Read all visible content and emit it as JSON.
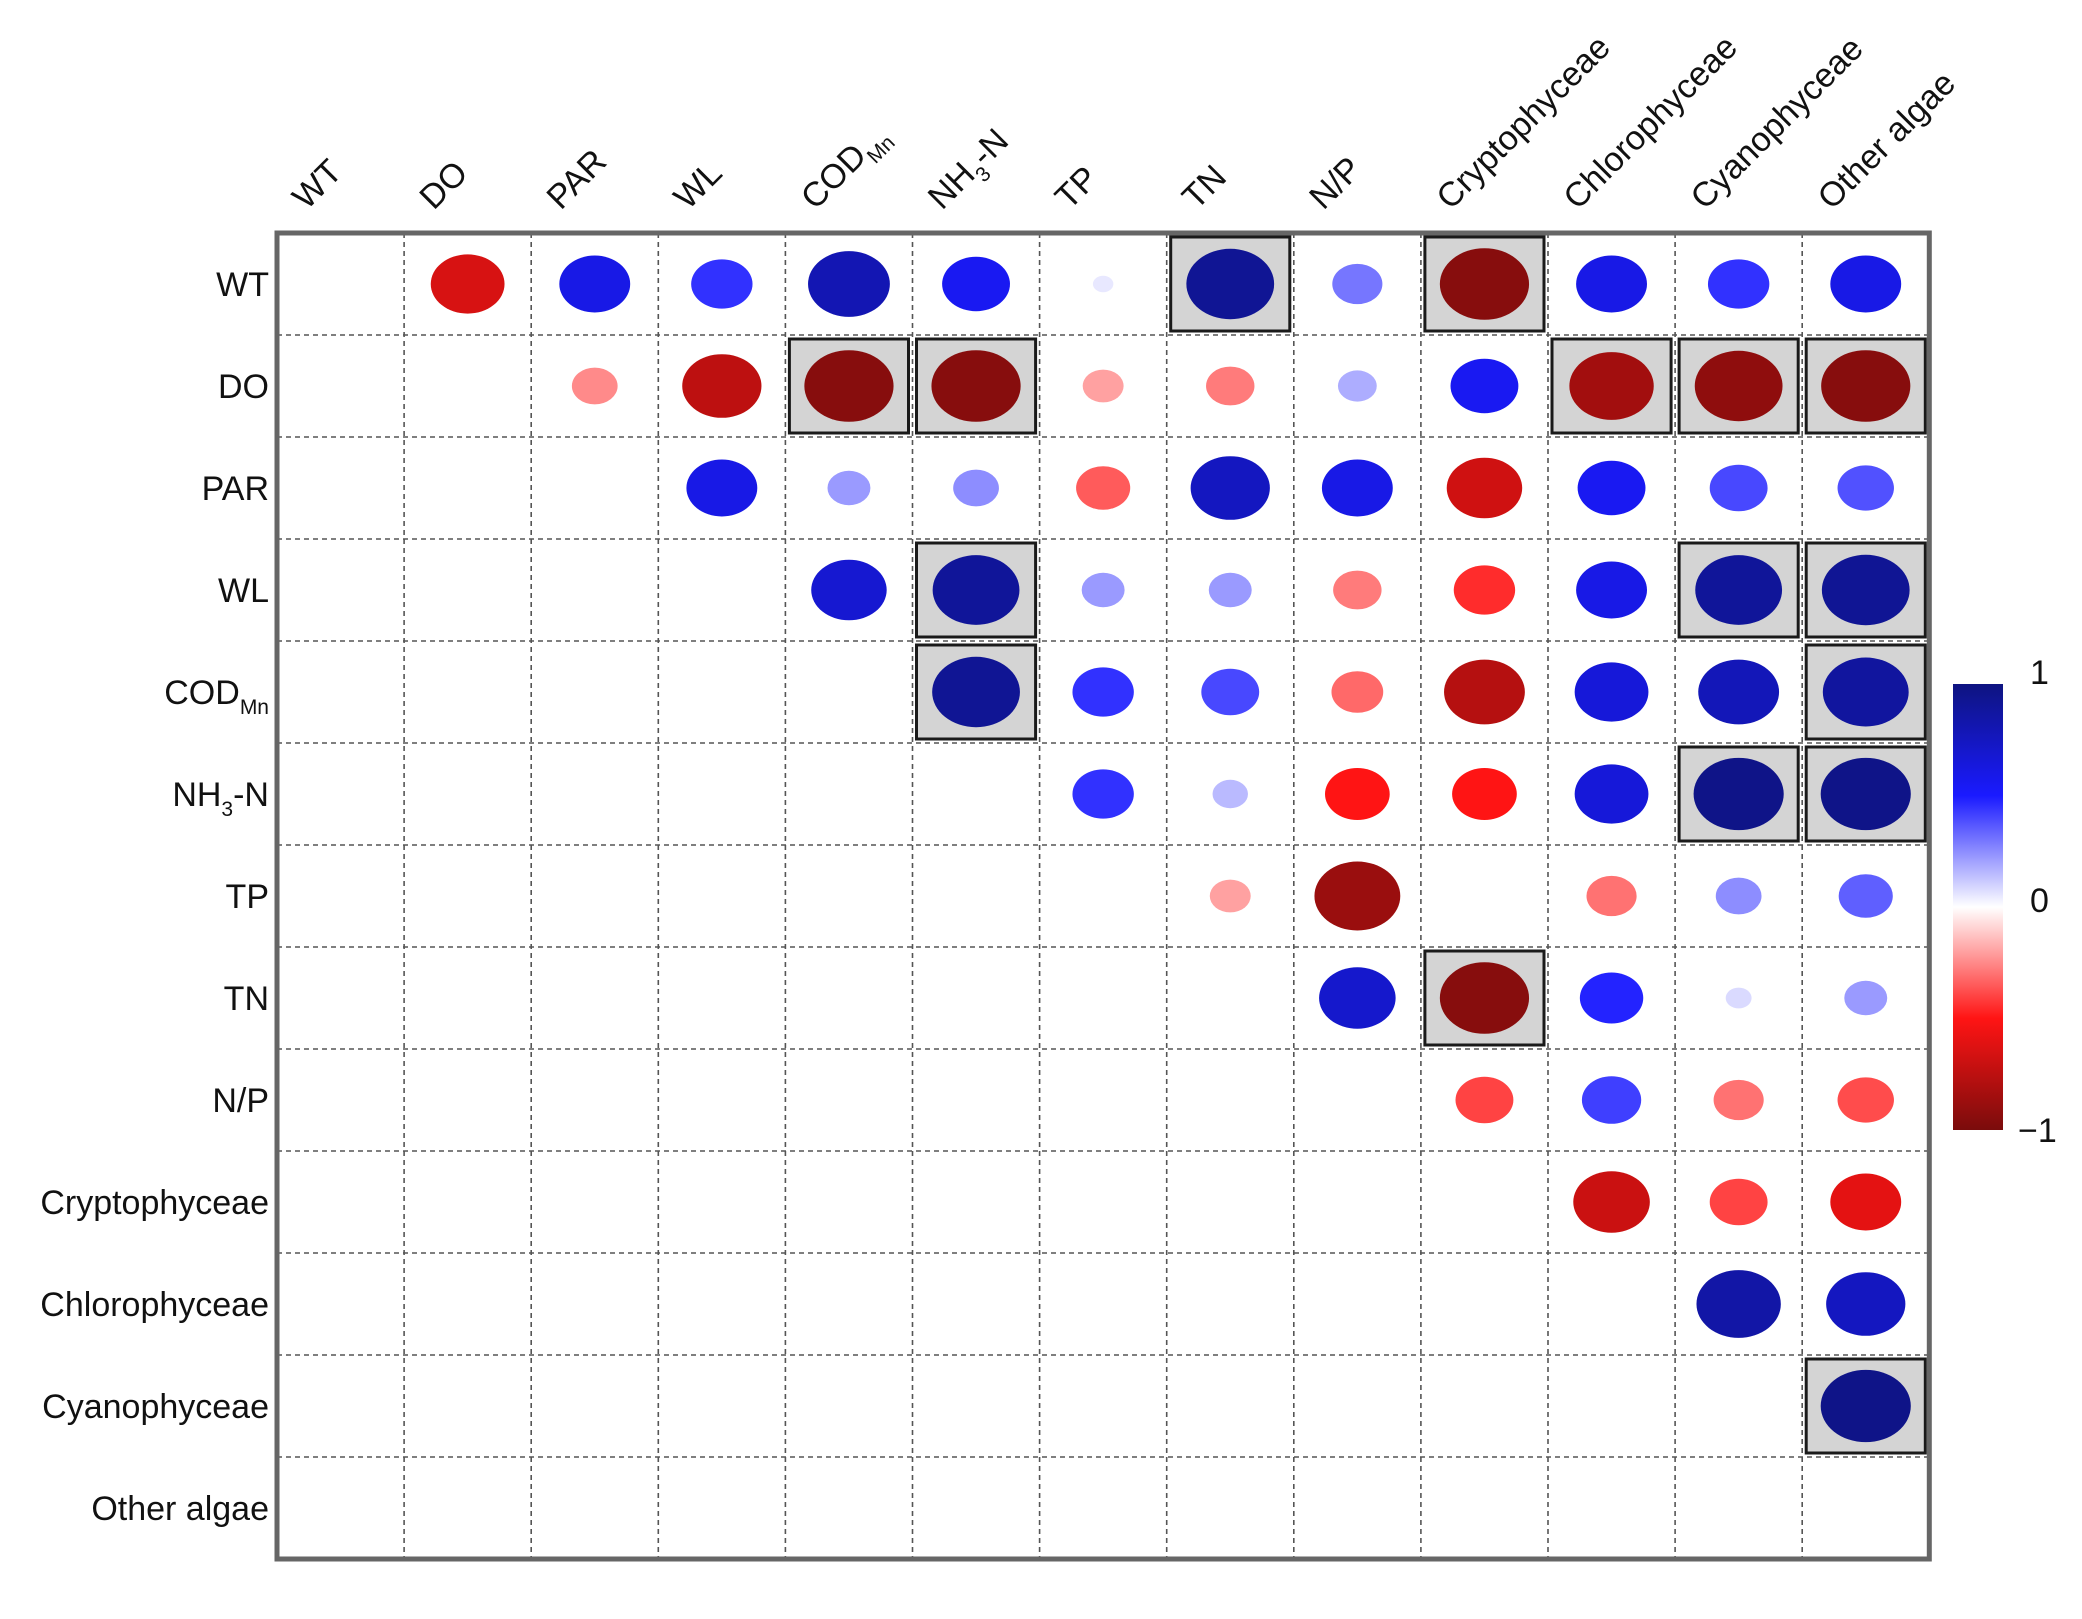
{
  "chart_data": {
    "type": "heatmap",
    "title": "",
    "variables": [
      {
        "label": "WT"
      },
      {
        "label": "DO"
      },
      {
        "label": "PAR"
      },
      {
        "label": "WL"
      },
      {
        "label": "COD",
        "sub": "Mn"
      },
      {
        "label": "NH",
        "sub": "3",
        "suffix": "-N"
      },
      {
        "label": "TP"
      },
      {
        "label": "TN"
      },
      {
        "label": "N/P"
      },
      {
        "label": "Cryptophyceae"
      },
      {
        "label": "Chlorophyceae"
      },
      {
        "label": "Cyanophyceae"
      },
      {
        "label": "Other algae"
      }
    ],
    "correlations": [
      [
        null,
        -0.65,
        0.6,
        0.45,
        0.8,
        0.55,
        0.05,
        0.92,
        0.3,
        -0.95,
        0.6,
        0.45,
        0.6
      ],
      [
        null,
        null,
        -0.25,
        -0.75,
        -0.95,
        -0.95,
        -0.2,
        -0.28,
        0.18,
        0.55,
        -0.85,
        -0.92,
        -0.95
      ],
      [
        null,
        null,
        null,
        0.6,
        0.22,
        0.25,
        -0.35,
        0.75,
        0.6,
        -0.68,
        0.55,
        0.4,
        0.38
      ],
      [
        null,
        null,
        null,
        null,
        0.68,
        0.9,
        0.22,
        0.22,
        -0.28,
        -0.45,
        0.6,
        0.9,
        0.92
      ],
      [
        null,
        null,
        null,
        null,
        null,
        0.92,
        0.45,
        0.4,
        -0.32,
        -0.78,
        0.65,
        0.78,
        0.88
      ],
      [
        null,
        null,
        null,
        null,
        null,
        null,
        0.45,
        0.15,
        -0.5,
        -0.5,
        0.65,
        0.97,
        0.97
      ],
      [
        null,
        null,
        null,
        null,
        null,
        null,
        null,
        -0.2,
        -0.88,
        null,
        -0.3,
        0.25,
        0.35
      ],
      [
        null,
        null,
        null,
        null,
        null,
        null,
        null,
        null,
        0.7,
        -0.95,
        0.48,
        0.08,
        0.22
      ],
      [
        null,
        null,
        null,
        null,
        null,
        null,
        null,
        null,
        null,
        -0.4,
        0.42,
        -0.3,
        -0.38
      ],
      [
        null,
        null,
        null,
        null,
        null,
        null,
        null,
        null,
        null,
        null,
        -0.7,
        -0.4,
        -0.6
      ],
      [
        null,
        null,
        null,
        null,
        null,
        null,
        null,
        null,
        null,
        null,
        null,
        0.85,
        0.75
      ],
      [
        null,
        null,
        null,
        null,
        null,
        null,
        null,
        null,
        null,
        null,
        null,
        null,
        0.97
      ],
      [
        null,
        null,
        null,
        null,
        null,
        null,
        null,
        null,
        null,
        null,
        null,
        null,
        null
      ]
    ],
    "highlighted": [
      [
        0,
        7
      ],
      [
        0,
        9
      ],
      [
        1,
        4
      ],
      [
        1,
        5
      ],
      [
        1,
        10
      ],
      [
        1,
        11
      ],
      [
        1,
        12
      ],
      [
        3,
        5
      ],
      [
        3,
        11
      ],
      [
        3,
        12
      ],
      [
        4,
        5
      ],
      [
        4,
        12
      ],
      [
        5,
        11
      ],
      [
        5,
        12
      ],
      [
        7,
        9
      ],
      [
        11,
        12
      ]
    ],
    "colorbar": {
      "max_label": "1",
      "mid_label": "0",
      "min_label": "−1",
      "range": [
        -1,
        1
      ],
      "stops": [
        "#7a0c0c",
        "#ff1414",
        "#ffffff",
        "#1a1aff",
        "#0e1480"
      ]
    },
    "grid": true,
    "legend_position": "right"
  }
}
